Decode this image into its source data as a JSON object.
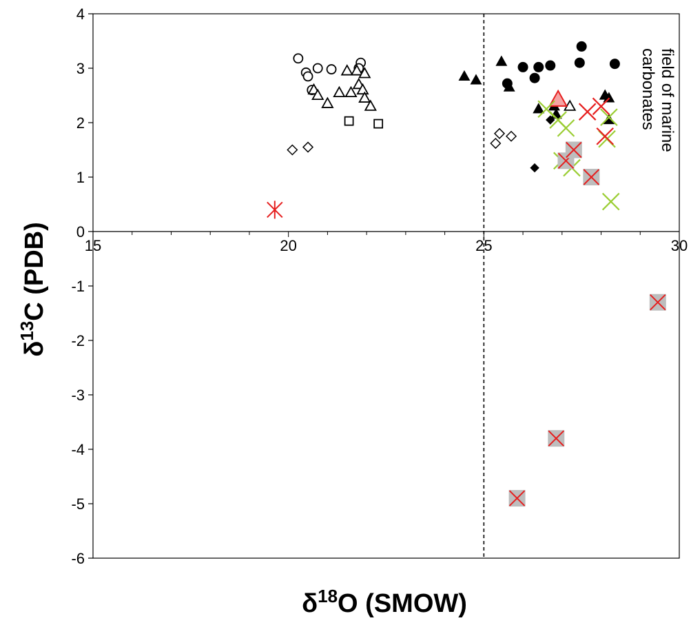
{
  "chart_data": {
    "type": "scatter",
    "xlabel": {
      "base": "δ",
      "sup": "18",
      "rest": "O (SMOW)"
    },
    "ylabel": {
      "base": "δ",
      "sup": "13",
      "rest": "C (PDB)"
    },
    "xlim": [
      15,
      30
    ],
    "ylim": [
      -6,
      4
    ],
    "x_ticks": [
      15,
      20,
      25,
      30
    ],
    "y_ticks": [
      4,
      3,
      2,
      1,
      0,
      -1,
      -2,
      -3,
      -4,
      -5,
      -6
    ],
    "reference_line": {
      "x": 25,
      "style": "dashed"
    },
    "annotation": [
      "field of marine",
      "carbonates"
    ],
    "grid": false,
    "legend": "none",
    "series": [
      {
        "marker": "circle-open",
        "color": "#000000",
        "points": [
          [
            20.25,
            3.18
          ],
          [
            20.45,
            2.92
          ],
          [
            20.5,
            2.85
          ],
          [
            20.75,
            3.0
          ],
          [
            20.6,
            2.6
          ],
          [
            21.1,
            2.98
          ],
          [
            21.85,
            3.1
          ],
          [
            21.8,
            3.0
          ]
        ]
      },
      {
        "marker": "triangle-open",
        "color": "#000000",
        "points": [
          [
            20.65,
            2.6
          ],
          [
            20.75,
            2.5
          ],
          [
            21.0,
            2.35
          ],
          [
            21.3,
            2.55
          ],
          [
            21.5,
            2.95
          ],
          [
            21.6,
            2.55
          ],
          [
            21.75,
            2.95
          ],
          [
            21.8,
            2.7
          ],
          [
            21.9,
            2.6
          ],
          [
            21.95,
            2.9
          ],
          [
            21.95,
            2.45
          ],
          [
            22.1,
            2.3
          ]
        ]
      },
      {
        "marker": "square-open",
        "color": "#000000",
        "points": [
          [
            21.55,
            2.03
          ],
          [
            22.3,
            1.98
          ]
        ]
      },
      {
        "marker": "diamond-open",
        "color": "#000000",
        "points": [
          [
            20.1,
            1.5
          ],
          [
            20.5,
            1.55
          ],
          [
            25.3,
            1.62
          ],
          [
            25.4,
            1.8
          ],
          [
            25.7,
            1.75
          ]
        ]
      },
      {
        "marker": "triangle-filled",
        "color": "#000000",
        "points": [
          [
            24.5,
            2.85
          ],
          [
            24.8,
            2.78
          ],
          [
            25.45,
            3.12
          ],
          [
            25.65,
            2.65
          ],
          [
            26.4,
            2.25
          ],
          [
            26.8,
            2.3
          ],
          [
            26.85,
            2.15
          ],
          [
            28.1,
            2.5
          ],
          [
            28.2,
            2.45
          ],
          [
            28.2,
            2.05
          ]
        ]
      },
      {
        "marker": "circle-filled",
        "color": "#000000",
        "points": [
          [
            25.6,
            2.72
          ],
          [
            26.0,
            3.02
          ],
          [
            26.3,
            2.82
          ],
          [
            26.4,
            3.02
          ],
          [
            26.7,
            3.05
          ],
          [
            27.5,
            3.4
          ],
          [
            27.45,
            3.1
          ],
          [
            28.35,
            3.08
          ]
        ]
      },
      {
        "marker": "diamond-filled",
        "color": "#000000",
        "points": [
          [
            26.3,
            1.17
          ],
          [
            26.7,
            2.05
          ]
        ]
      },
      {
        "marker": "triangle-open",
        "color": "#000000",
        "points": [
          [
            27.2,
            2.3
          ]
        ]
      },
      {
        "marker": "triangle-large",
        "color": "#e61e1e",
        "points": [
          [
            26.9,
            2.42
          ]
        ]
      },
      {
        "marker": "x",
        "color": "#9acd32",
        "points": [
          [
            26.6,
            2.25
          ],
          [
            26.9,
            2.05
          ],
          [
            27.1,
            1.9
          ],
          [
            27.0,
            1.3
          ],
          [
            27.25,
            1.17
          ],
          [
            28.2,
            2.1
          ],
          [
            28.15,
            1.7
          ],
          [
            28.25,
            0.55
          ]
        ]
      },
      {
        "marker": "x",
        "color": "#e61e1e",
        "points": [
          [
            27.65,
            2.2
          ],
          [
            28.0,
            2.3
          ],
          [
            28.1,
            1.75
          ]
        ]
      },
      {
        "marker": "star",
        "color": "#e61e1e",
        "points": [
          [
            19.65,
            0.4
          ]
        ]
      },
      {
        "marker": "x-in-square",
        "color": "#e61e1e",
        "fill": "#bdbdbd",
        "points": [
          [
            27.1,
            1.3
          ],
          [
            27.3,
            1.5
          ],
          [
            27.75,
            1.0
          ],
          [
            29.45,
            -1.3
          ],
          [
            26.85,
            -3.8
          ],
          [
            25.85,
            -4.9
          ]
        ]
      }
    ]
  }
}
